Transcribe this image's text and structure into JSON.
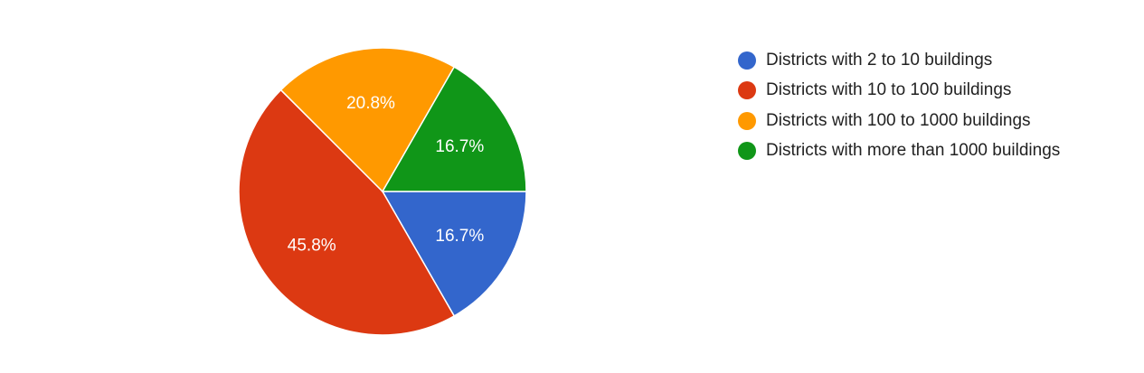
{
  "chart_data": {
    "type": "pie",
    "title": "",
    "legend_position": "right",
    "slices": [
      {
        "label": "Districts with 2 to 10 buildings",
        "value": 16.7,
        "display": "16.7%",
        "color": "#3366cc"
      },
      {
        "label": "Districts with 10 to 100 buildings",
        "value": 45.8,
        "display": "45.8%",
        "color": "#dc3912"
      },
      {
        "label": "Districts with 100 to 1000 buildings",
        "value": 20.8,
        "display": "20.8%",
        "color": "#ff9900"
      },
      {
        "label": "Districts with more than 1000 buildings",
        "value": 16.7,
        "display": "16.7%",
        "color": "#109618"
      }
    ]
  }
}
